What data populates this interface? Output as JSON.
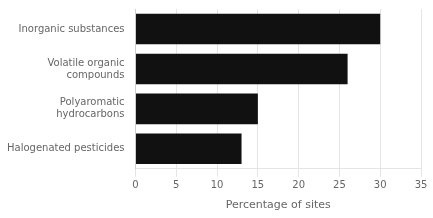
{
  "chart_data": {
    "type": "bar",
    "orientation": "horizontal",
    "categories": [
      "Inorganic substances",
      "Volatile organic\ncompounds",
      "Polyaromatic\nhydrocarbons",
      "Halogenated pesticides"
    ],
    "values": [
      30,
      26,
      15,
      13
    ],
    "color": "#111111",
    "xlabel": "Percentage of sites",
    "xlim": [
      0,
      35
    ],
    "xticks": [
      0,
      5,
      10,
      15,
      20,
      25,
      30,
      35
    ],
    "grid": true
  }
}
